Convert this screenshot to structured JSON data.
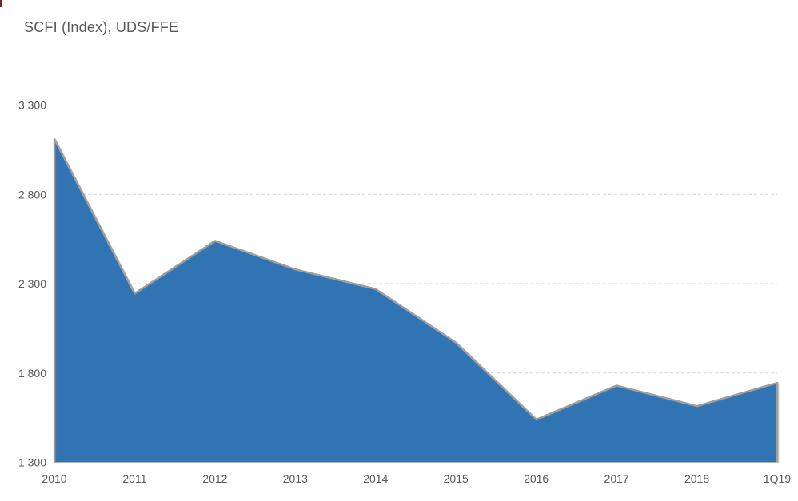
{
  "page": {
    "background": "#ffffff",
    "corner_mark_color": "#7A1F2B"
  },
  "chart_data": {
    "type": "area",
    "title": "SCFI (Index), UDS/FFE",
    "categories": [
      "2010",
      "2011",
      "2012",
      "2013",
      "2014",
      "2015",
      "2016",
      "2017",
      "2018",
      "1Q19"
    ],
    "series": [
      {
        "name": "SCFI",
        "values": [
          3110,
          2245,
          2540,
          2380,
          2270,
          1970,
          1540,
          1730,
          1615,
          1745
        ]
      }
    ],
    "xlabel": "",
    "ylabel": "",
    "ylim": [
      1300,
      3300
    ],
    "y_ticks": [
      1300,
      1800,
      2300,
      2800,
      3300
    ],
    "y_tick_labels": [
      "1 300",
      "1 800",
      "2 300",
      "2 800",
      "3 300"
    ],
    "grid": "horizontal-dashed",
    "legend_position": "none",
    "colors": {
      "area_fill": "#3074B4",
      "edge_line": "#A59E96",
      "gridline": "#D6D6D6",
      "tick_label": "#595959",
      "title": "#595959"
    }
  }
}
